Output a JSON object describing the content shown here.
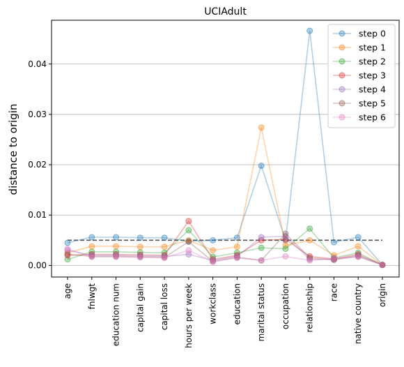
{
  "chart_data": {
    "type": "line",
    "title": "UCIAdult",
    "xlabel": "",
    "ylabel": "distance to origin",
    "categories": [
      "age",
      "fnlwgt",
      "education num",
      "capital gain",
      "capital loss",
      "hours per week",
      "workclass",
      "education",
      "marital status",
      "occupation",
      "relationship",
      "race",
      "native country",
      "origin"
    ],
    "ylim": [
      -0.0023,
      0.0487
    ],
    "yticks": [
      0.0,
      0.01,
      0.02,
      0.03,
      0.04
    ],
    "ytick_labels": [
      "0.00",
      "0.01",
      "0.02",
      "0.03",
      "0.04"
    ],
    "grid": "y",
    "legend_position": "top-right",
    "reference_line": {
      "value": 0.005,
      "style": "dashed",
      "color": "#555555"
    },
    "series": [
      {
        "name": "step 0",
        "color": "#1f77b4",
        "values": [
          0.0045,
          0.0056,
          0.0056,
          0.0055,
          0.0055,
          0.0048,
          0.005,
          0.0055,
          0.0198,
          0.005,
          0.0466,
          0.0046,
          0.0056,
          0.0001
        ]
      },
      {
        "name": "step 1",
        "color": "#ff7f0e",
        "values": [
          0.0025,
          0.0038,
          0.0038,
          0.0037,
          0.0037,
          0.005,
          0.003,
          0.0037,
          0.0274,
          0.004,
          0.005,
          0.002,
          0.0038,
          0.0001
        ]
      },
      {
        "name": "step 2",
        "color": "#2ca02c",
        "values": [
          0.0012,
          0.0027,
          0.0027,
          0.0026,
          0.0025,
          0.007,
          0.0017,
          0.0025,
          0.0035,
          0.0033,
          0.0073,
          0.0015,
          0.0025,
          0.0001
        ]
      },
      {
        "name": "step 3",
        "color": "#d62728",
        "values": [
          0.002,
          0.0022,
          0.0022,
          0.0021,
          0.002,
          0.0088,
          0.0012,
          0.002,
          0.005,
          0.0052,
          0.0018,
          0.0013,
          0.0022,
          0.0001
        ]
      },
      {
        "name": "step 4",
        "color": "#9467bd",
        "values": [
          0.003,
          0.002,
          0.002,
          0.0019,
          0.0018,
          0.0022,
          0.001,
          0.0018,
          0.0056,
          0.0058,
          0.0012,
          0.0012,
          0.002,
          0.0001
        ]
      },
      {
        "name": "step 5",
        "color": "#8c564b",
        "values": [
          0.0022,
          0.0018,
          0.0018,
          0.0017,
          0.0016,
          0.0047,
          0.0008,
          0.0016,
          0.001,
          0.0063,
          0.0015,
          0.0011,
          0.0018,
          0.0001
        ]
      },
      {
        "name": "step 6",
        "color": "#e377c2",
        "values": [
          0.0033,
          0.0017,
          0.0017,
          0.0016,
          0.0015,
          0.003,
          0.0007,
          0.0015,
          0.001,
          0.0018,
          0.001,
          0.0014,
          0.0017,
          0.0001
        ]
      }
    ]
  }
}
